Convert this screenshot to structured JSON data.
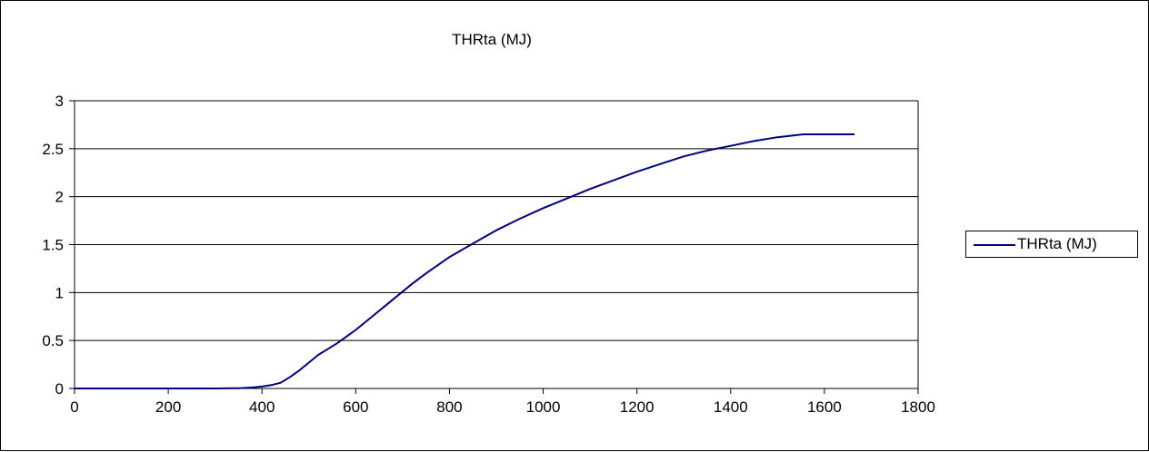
{
  "chart_data": {
    "type": "line",
    "title": "THRta (MJ)",
    "xlabel": "",
    "ylabel": "",
    "xlim": [
      0,
      1800
    ],
    "ylim": [
      0,
      3
    ],
    "x_ticks": [
      0,
      200,
      400,
      600,
      800,
      1000,
      1200,
      1400,
      1600,
      1800
    ],
    "y_ticks": [
      0,
      0.5,
      1,
      1.5,
      2,
      2.5,
      3
    ],
    "x_tick_labels": [
      "0",
      "200",
      "400",
      "600",
      "800",
      "1000",
      "1200",
      "1400",
      "1600",
      "1800"
    ],
    "y_tick_labels": [
      "0",
      "0.5",
      "1",
      "1.5",
      "2",
      "2.5",
      "3"
    ],
    "grid": "horizontal",
    "legend_position": "right",
    "series": [
      {
        "name": "THRta (MJ)",
        "color": "#000080",
        "x": [
          0,
          100,
          200,
          300,
          350,
          380,
          400,
          420,
          440,
          460,
          480,
          500,
          520,
          540,
          560,
          580,
          600,
          620,
          640,
          660,
          680,
          700,
          720,
          750,
          800,
          850,
          900,
          950,
          1000,
          1050,
          1100,
          1150,
          1200,
          1250,
          1300,
          1350,
          1400,
          1450,
          1500,
          1555,
          1600,
          1663
        ],
        "y": [
          0,
          0,
          0,
          0,
          0.003,
          0.01,
          0.02,
          0.035,
          0.06,
          0.12,
          0.19,
          0.27,
          0.35,
          0.41,
          0.47,
          0.54,
          0.61,
          0.69,
          0.77,
          0.85,
          0.93,
          1.01,
          1.09,
          1.2,
          1.37,
          1.51,
          1.65,
          1.77,
          1.88,
          1.98,
          2.08,
          2.17,
          2.26,
          2.34,
          2.42,
          2.48,
          2.53,
          2.58,
          2.62,
          2.65,
          2.65,
          2.65
        ]
      }
    ]
  }
}
